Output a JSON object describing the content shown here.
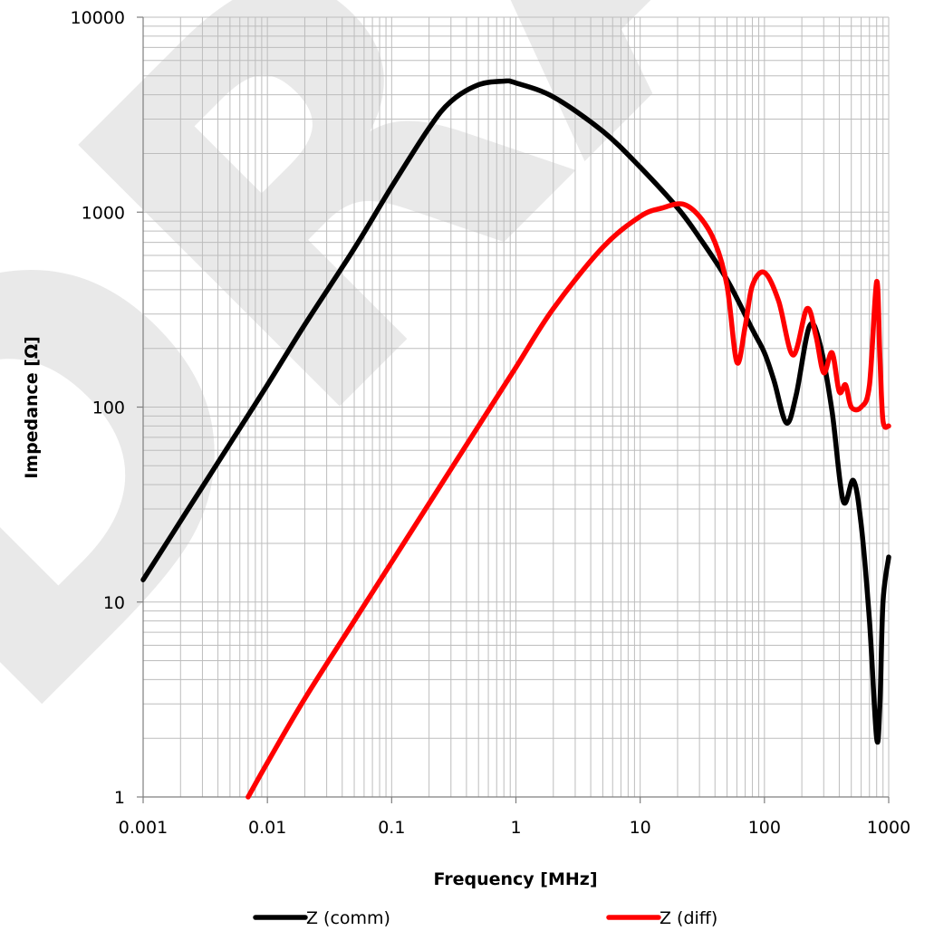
{
  "chart_data": {
    "type": "line",
    "title": "",
    "xlabel": "Frequency [MHz]",
    "ylabel": "Impedance [Ω]",
    "x_scale": "log",
    "y_scale": "log",
    "xlim": [
      0.001,
      1000
    ],
    "ylim": [
      1,
      10000
    ],
    "x_ticks": [
      "0.001",
      "0.01",
      "0.1",
      "1",
      "10",
      "100",
      "1000"
    ],
    "y_ticks": [
      "1",
      "10",
      "100",
      "1000",
      "10000"
    ],
    "grid": true,
    "legend_position": "bottom",
    "watermark": "DRAFT",
    "series": [
      {
        "name": "Z (comm)",
        "color": "#000000",
        "points": [
          [
            0.001,
            13
          ],
          [
            0.002,
            26
          ],
          [
            0.005,
            65
          ],
          [
            0.01,
            130
          ],
          [
            0.02,
            265
          ],
          [
            0.05,
            650
          ],
          [
            0.1,
            1350
          ],
          [
            0.2,
            2700
          ],
          [
            0.3,
            3700
          ],
          [
            0.5,
            4500
          ],
          [
            0.8,
            4700
          ],
          [
            1,
            4600
          ],
          [
            2,
            3900
          ],
          [
            5,
            2600
          ],
          [
            10,
            1700
          ],
          [
            20,
            1050
          ],
          [
            30,
            740
          ],
          [
            50,
            450
          ],
          [
            80,
            250
          ],
          [
            100,
            190
          ],
          [
            120,
            135
          ],
          [
            150,
            83
          ],
          [
            180,
            115
          ],
          [
            230,
            260
          ],
          [
            280,
            210
          ],
          [
            350,
            95
          ],
          [
            430,
            33
          ],
          [
            520,
            42
          ],
          [
            600,
            25
          ],
          [
            700,
            8
          ],
          [
            800,
            2
          ],
          [
            850,
            3
          ],
          [
            900,
            10
          ],
          [
            1000,
            17
          ]
        ]
      },
      {
        "name": "Z (diff)",
        "color": "#ff0000",
        "points": [
          [
            0.007,
            1
          ],
          [
            0.01,
            1.5
          ],
          [
            0.02,
            3.2
          ],
          [
            0.05,
            8
          ],
          [
            0.1,
            16
          ],
          [
            0.2,
            32
          ],
          [
            0.5,
            80
          ],
          [
            1,
            160
          ],
          [
            2,
            320
          ],
          [
            5,
            660
          ],
          [
            10,
            950
          ],
          [
            15,
            1050
          ],
          [
            22,
            1100
          ],
          [
            30,
            950
          ],
          [
            40,
            700
          ],
          [
            50,
            420
          ],
          [
            60,
            170
          ],
          [
            70,
            260
          ],
          [
            80,
            420
          ],
          [
            100,
            490
          ],
          [
            130,
            350
          ],
          [
            170,
            185
          ],
          [
            220,
            320
          ],
          [
            260,
            230
          ],
          [
            300,
            150
          ],
          [
            350,
            190
          ],
          [
            400,
            120
          ],
          [
            450,
            130
          ],
          [
            500,
            100
          ],
          [
            600,
            100
          ],
          [
            700,
            130
          ],
          [
            800,
            440
          ],
          [
            850,
            180
          ],
          [
            900,
            85
          ],
          [
            1000,
            80
          ]
        ]
      }
    ]
  }
}
